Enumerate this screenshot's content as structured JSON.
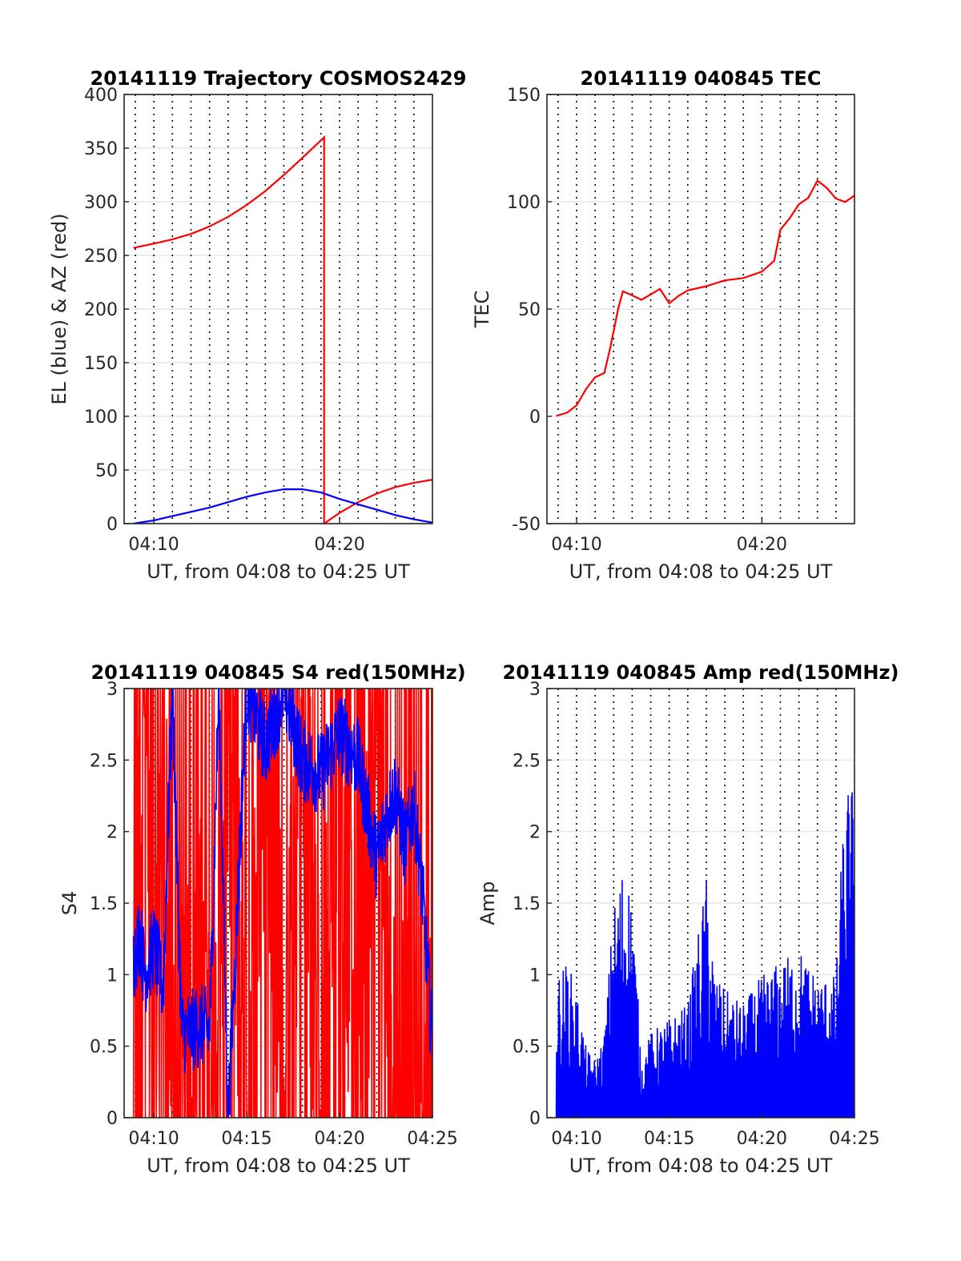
{
  "figure": {
    "background": "#ffffff"
  },
  "chart_data": [
    {
      "type": "line",
      "title": "20141119 Trajectory COSMOS2429",
      "xlabel": "UT, from 04:08 to 04:25 UT",
      "ylabel": "EL (blue) & AZ (red)",
      "xlim_minutes": [
        8.4,
        25
      ],
      "ylim": [
        0,
        400
      ],
      "xticks": [
        "04:10",
        "04:20"
      ],
      "yticks": [
        "0",
        "50",
        "100",
        "150",
        "200",
        "250",
        "300",
        "350",
        "400"
      ],
      "grid": "dotted vertical at each minute, light horizontal",
      "series": [
        {
          "color": "#ff0000",
          "x": [
            "04:08:54",
            "04:10",
            "04:11",
            "04:12",
            "04:13",
            "04:14",
            "04:15",
            "04:16",
            "04:17",
            "04:18",
            "04:19:10",
            "04:19:10",
            "04:20",
            "04:21",
            "04:22",
            "04:23",
            "04:24",
            "04:25"
          ],
          "y": [
            257,
            261,
            265,
            270,
            277,
            286,
            297,
            310,
            325,
            341,
            360,
            0,
            10,
            20,
            28,
            34,
            38,
            41
          ]
        },
        {
          "color": "#0000ff",
          "x": [
            "04:08:54",
            "04:10",
            "04:11",
            "04:12",
            "04:13",
            "04:14",
            "04:15",
            "04:16",
            "04:17",
            "04:18",
            "04:19",
            "04:20",
            "04:21",
            "04:22",
            "04:23",
            "04:24",
            "04:25"
          ],
          "y": [
            0,
            3,
            7,
            11,
            15,
            20,
            25,
            29,
            32,
            32,
            29,
            23,
            18,
            13,
            8,
            4,
            1
          ]
        }
      ]
    },
    {
      "type": "line",
      "title": "20141119 040845 TEC",
      "xlabel": "UT, from 04:08 to 04:25 UT",
      "ylabel": "TEC",
      "xlim_minutes": [
        8.4,
        25
      ],
      "ylim": [
        -50,
        150
      ],
      "xticks": [
        "04:10",
        "04:20"
      ],
      "yticks": [
        "-50",
        "0",
        "50",
        "100",
        "150"
      ],
      "grid": "dotted vertical at each minute, light horizontal",
      "series": [
        {
          "color": "#ff0000",
          "x": [
            "04:08:54",
            "04:09:30",
            "04:10",
            "04:10:30",
            "04:11",
            "04:11:30",
            "04:11:50",
            "04:12:15",
            "04:12:30",
            "04:13",
            "04:13:30",
            "04:14",
            "04:14:30",
            "04:15",
            "04:15:30",
            "04:16",
            "04:17",
            "04:18",
            "04:19",
            "04:20",
            "04:20:40",
            "04:21",
            "04:21:30",
            "04:22",
            "04:22:30",
            "04:23",
            "04:23:30",
            "04:24",
            "04:24:30",
            "04:25"
          ],
          "y": [
            0,
            2,
            5,
            12,
            18,
            20,
            33,
            50,
            58,
            56,
            54,
            57,
            59,
            53,
            56,
            59,
            61,
            63,
            64,
            67,
            73,
            87,
            92,
            99,
            102,
            110,
            106,
            101,
            100,
            103
          ]
        }
      ]
    },
    {
      "type": "line",
      "title": "20141119 040845 S4 red(150MHz)",
      "xlabel": "UT, from 04:08 to 04:25 UT",
      "ylabel": "S4",
      "xlim_minutes": [
        8.4,
        25
      ],
      "ylim": [
        0,
        3
      ],
      "xticks": [
        "04:10",
        "04:15",
        "04:20",
        "04:25"
      ],
      "yticks": [
        "0",
        "0.5",
        "1",
        "1.5",
        "2",
        "2.5",
        "3"
      ],
      "grid": "dotted vertical at each minute, light horizontal",
      "series": [
        {
          "color": "#ff0000",
          "x": [
            "04:08:54",
            "04:09:30",
            "04:10",
            "04:10:30",
            "04:11",
            "04:11:30",
            "04:12",
            "04:12:30",
            "04:13",
            "04:14",
            "04:15",
            "04:16",
            "04:17",
            "04:18",
            "04:19",
            "04:20",
            "04:21",
            "04:22",
            "04:22:45",
            "04:23",
            "04:24",
            "04:25"
          ],
          "y": [
            2,
            3,
            0,
            3,
            0.3,
            0,
            0.6,
            0.7,
            0,
            3,
            0,
            3,
            0,
            3,
            0,
            3,
            0,
            3,
            0,
            0,
            0,
            0
          ]
        },
        {
          "color": "#0000ff",
          "x": [
            "04:08:54",
            "04:09:15",
            "04:09:30",
            "04:10",
            "04:10:30",
            "04:11",
            "04:11:30",
            "04:12",
            "04:12:30",
            "04:13",
            "04:13:30",
            "04:14",
            "04:15",
            "04:16",
            "04:17",
            "04:18",
            "04:19",
            "04:20",
            "04:21",
            "04:22",
            "04:22:30",
            "04:23",
            "04:23:30",
            "04:24",
            "04:24:30",
            "04:25"
          ],
          "y": [
            1.1,
            1.3,
            1.0,
            1.2,
            0.9,
            3,
            0.6,
            0.6,
            0.65,
            0.6,
            3,
            0,
            3,
            2.6,
            3,
            2.5,
            2.4,
            2.7,
            2.5,
            1.8,
            2.1,
            2.3,
            1.9,
            2.2,
            1.5,
            0.5
          ]
        }
      ]
    },
    {
      "type": "line",
      "title": "20141119 040845 Amp red(150MHz)",
      "xlabel": "UT, from 04:08 to 04:25 UT",
      "ylabel": "Amp",
      "xlim_minutes": [
        8.4,
        25
      ],
      "ylim": [
        0,
        3
      ],
      "xticks": [
        "04:10",
        "04:15",
        "04:20",
        "04:25"
      ],
      "yticks": [
        "0",
        "0.5",
        "1",
        "1.5",
        "2",
        "2.5",
        "3"
      ],
      "grid": "dotted vertical at each minute, light horizontal",
      "series": [
        {
          "color": "#0000ff",
          "x": [
            "04:08:54",
            "04:09:30",
            "04:10",
            "04:10:30",
            "04:11",
            "04:11:30",
            "04:12",
            "04:12:30",
            "04:13",
            "04:13:30",
            "04:14",
            "04:15",
            "04:16",
            "04:17",
            "04:17:30",
            "04:18",
            "04:19",
            "04:20",
            "04:21",
            "04:22",
            "04:23",
            "04:24",
            "04:24:30",
            "04:25"
          ],
          "y": [
            1.0,
            1.1,
            0.9,
            0.5,
            0.4,
            0.6,
            1.5,
            1.8,
            1.6,
            0.4,
            0.6,
            0.7,
            0.8,
            1.7,
            1.0,
            0.9,
            0.8,
            1.0,
            1.1,
            1.2,
            1.0,
            1.0,
            2.4,
            2.3
          ]
        }
      ]
    }
  ]
}
